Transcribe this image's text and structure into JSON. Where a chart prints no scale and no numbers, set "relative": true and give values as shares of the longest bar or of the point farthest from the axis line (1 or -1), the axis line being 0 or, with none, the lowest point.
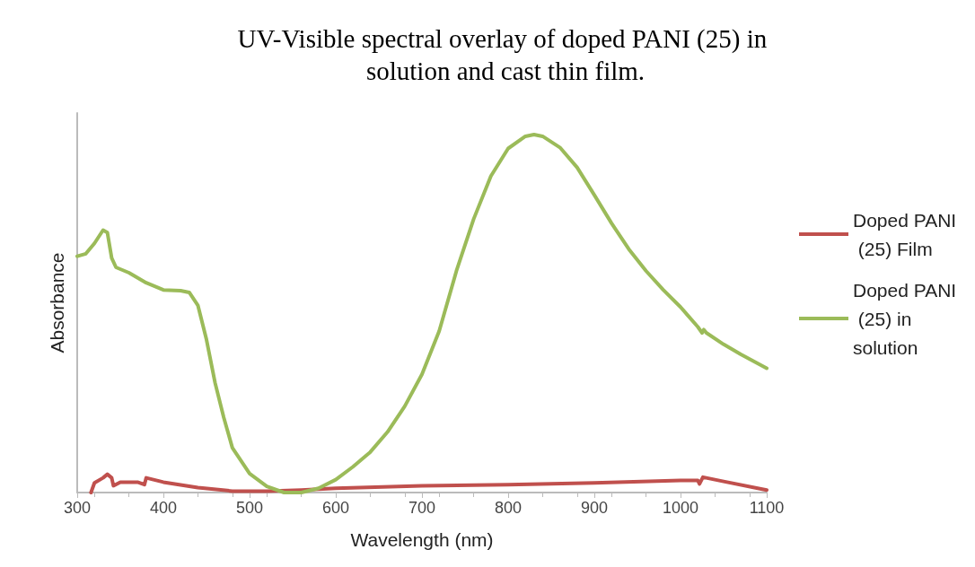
{
  "chart_data": {
    "type": "line",
    "title": "UV-Visible spectral overlay of doped PANI (25) in solution and cast thin film.",
    "xlabel": "Wavelength (nm)",
    "ylabel": "Absorbance",
    "relative": true,
    "xlim": [
      300,
      1100
    ],
    "xticks": [
      300,
      400,
      500,
      600,
      700,
      800,
      900,
      1000,
      1100
    ],
    "legend": "right",
    "grid": false,
    "marker": "none",
    "line_style": "solid",
    "series": [
      {
        "name": "Doped PANI (25) Film",
        "color": "#c0504d",
        "x": [
          316,
          320,
          330,
          335,
          340,
          342,
          350,
          370,
          378,
          380,
          400,
          440,
          480,
          520,
          560,
          600,
          700,
          800,
          900,
          1000,
          1020,
          1022,
          1026,
          1050,
          1100
        ],
        "values": [
          0,
          0.027,
          0.041,
          0.051,
          0.041,
          0.019,
          0.029,
          0.029,
          0.022,
          0.041,
          0.029,
          0.014,
          0.004,
          0.004,
          0.007,
          0.012,
          0.019,
          0.022,
          0.027,
          0.034,
          0.034,
          0.024,
          0.043,
          0.031,
          0.007
        ]
      },
      {
        "name": "Doped PANI (25) in solution",
        "color": "#9bbb59",
        "x": [
          300,
          310,
          320,
          330,
          335,
          340,
          345,
          360,
          380,
          400,
          420,
          430,
          440,
          450,
          460,
          470,
          480,
          500,
          520,
          540,
          560,
          580,
          600,
          620,
          640,
          660,
          680,
          700,
          720,
          740,
          760,
          780,
          800,
          820,
          830,
          840,
          860,
          880,
          900,
          920,
          940,
          960,
          980,
          1000,
          1020,
          1025,
          1027,
          1030,
          1050,
          1070,
          1100
        ],
        "values": [
          0.66,
          0.667,
          0.696,
          0.733,
          0.726,
          0.655,
          0.629,
          0.614,
          0.586,
          0.566,
          0.564,
          0.559,
          0.523,
          0.427,
          0.306,
          0.21,
          0.125,
          0.053,
          0.017,
          0,
          0,
          0.012,
          0.036,
          0.072,
          0.113,
          0.169,
          0.241,
          0.33,
          0.451,
          0.619,
          0.764,
          0.884,
          0.961,
          0.995,
          1,
          0.995,
          0.964,
          0.908,
          0.831,
          0.752,
          0.68,
          0.619,
          0.566,
          0.518,
          0.463,
          0.446,
          0.455,
          0.446,
          0.414,
          0.386,
          0.347
        ]
      }
    ]
  }
}
